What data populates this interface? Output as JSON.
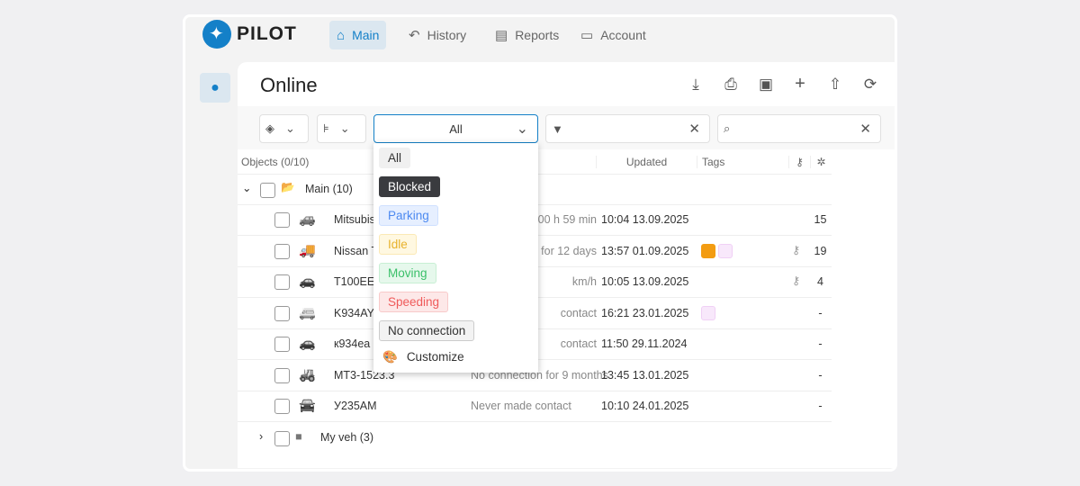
{
  "brand": "PILOT",
  "nav": [
    {
      "label": "Main",
      "icon": "home-icon",
      "active": true
    },
    {
      "label": "History",
      "icon": "history-icon"
    },
    {
      "label": "Reports",
      "icon": "file-icon"
    },
    {
      "label": "Account",
      "icon": "wallet-icon"
    }
  ],
  "page_title": "Online",
  "toolbar_icons": [
    "download-icon",
    "print-icon",
    "folder-plus-icon",
    "plus-icon",
    "file-upload-icon",
    "refresh-icon"
  ],
  "status_select": {
    "value": "All"
  },
  "filter_input": {
    "value": ""
  },
  "search_input": {
    "value": ""
  },
  "table": {
    "objects_header": "Objects (0/10)",
    "updated_header": "Updated",
    "tags_header": "Tags"
  },
  "groups": [
    {
      "label": "Main (10)",
      "expanded": true
    },
    {
      "label": "My veh (3)",
      "expanded": false
    }
  ],
  "rows": [
    {
      "name": "Mitsubishi",
      "status": "00 h 59 min",
      "updated": "10:04 13.09.2025",
      "tags": [],
      "key": false,
      "sat": "15",
      "icon": "suv-icon"
    },
    {
      "name": "Nissan T",
      "status": "n for 12 days",
      "updated": "13:57 01.09.2025",
      "tags": [
        "#f39c12",
        "#f8e8fb"
      ],
      "key": true,
      "sat": "19",
      "icon": "truck-icon"
    },
    {
      "name": "T100EE",
      "status": "km/h",
      "updated": "10:05 13.09.2025",
      "tags": [],
      "key": true,
      "sat": "4",
      "icon": "car-icon"
    },
    {
      "name": "K934AY",
      "status": "contact",
      "updated": "16:21 23.01.2025",
      "tags": [
        "#f8e8fb"
      ],
      "key": false,
      "sat": "-",
      "icon": "van-icon"
    },
    {
      "name": "к934еа",
      "status": "contact",
      "updated": "11:50 29.11.2024",
      "tags": [],
      "key": false,
      "sat": "-",
      "icon": "car-icon"
    },
    {
      "name": "MT3-1523.3",
      "status": "No connection for 9 months",
      "updated": "13:45 13.01.2025",
      "tags": [],
      "key": false,
      "sat": "-",
      "icon": "tractor-icon"
    },
    {
      "name": "У235AM",
      "status": "Never made contact",
      "updated": "10:10 24.01.2025",
      "tags": [],
      "key": false,
      "sat": "-",
      "icon": "sedan-icon"
    }
  ],
  "dropdown": {
    "options": [
      {
        "label": "All",
        "bg": "#f0f0f0",
        "fg": "#333",
        "border": "#f0f0f0"
      },
      {
        "label": "Blocked",
        "bg": "#3a3b3f",
        "fg": "#ffffff",
        "border": "#3a3b3f"
      },
      {
        "label": "Parking",
        "bg": "#e6efff",
        "fg": "#4d8af0",
        "border": "#cfe0ff"
      },
      {
        "label": "Idle",
        "bg": "#fff8e1",
        "fg": "#e8b22c",
        "border": "#fbe9b5"
      },
      {
        "label": "Moving",
        "bg": "#e6f8ec",
        "fg": "#3cc06a",
        "border": "#c8efd4"
      },
      {
        "label": "Speeding",
        "bg": "#fde8e8",
        "fg": "#ef5a5a",
        "border": "#f8caca"
      },
      {
        "label": "No connection",
        "bg": "#f3f3f3",
        "fg": "#333",
        "border": "#ccc"
      }
    ],
    "customize": "Customize"
  }
}
